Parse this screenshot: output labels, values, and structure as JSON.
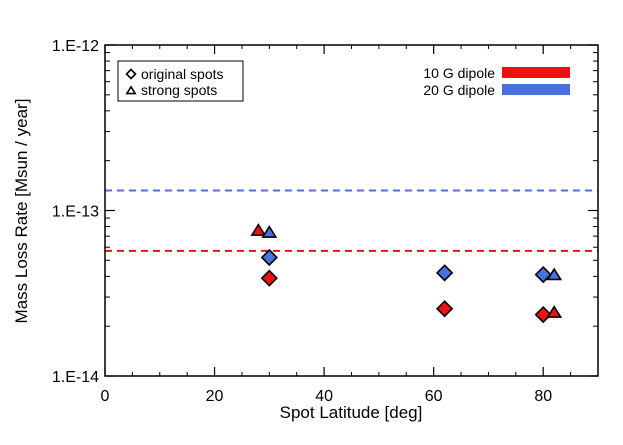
{
  "chart_data": {
    "type": "scatter",
    "title": "",
    "xlabel": "Spot Latitude [deg]",
    "ylabel": "Mass Loss Rate [Msun / year]",
    "xlim": [
      0,
      90
    ],
    "ylim": [
      1e-14,
      1e-12
    ],
    "yscale": "log",
    "xticks": [
      0,
      20,
      40,
      60,
      80
    ],
    "xtick_labels": [
      "0",
      "20",
      "40",
      "60",
      "80"
    ],
    "yticks": [
      1e-14,
      1e-13,
      1e-12
    ],
    "ytick_labels": [
      "1.E-14",
      "1.E-13",
      "1.E-12"
    ],
    "series": [
      {
        "name": "10 G dipole original spots",
        "dipole": "10 G dipole",
        "marker": "diamond",
        "color": "#ee1111",
        "x": [
          30,
          62,
          80
        ],
        "y": [
          3.9e-14,
          2.55e-14,
          2.35e-14
        ]
      },
      {
        "name": "10 G dipole strong spots",
        "dipole": "10 G dipole",
        "marker": "triangle",
        "color": "#ee1111",
        "x": [
          28,
          82
        ],
        "y": [
          7.5e-14,
          2.4e-14
        ]
      },
      {
        "name": "20 G dipole original spots",
        "dipole": "20 G dipole",
        "marker": "diamond",
        "color": "#4a70e0",
        "x": [
          30,
          62,
          80
        ],
        "y": [
          5.2e-14,
          4.2e-14,
          4.1e-14
        ]
      },
      {
        "name": "20 G dipole strong spots",
        "dipole": "20 G dipole",
        "marker": "triangle",
        "color": "#4a70e0",
        "x": [
          30,
          82
        ],
        "y": [
          7.3e-14,
          4.05e-14
        ]
      }
    ],
    "reference_lines": [
      {
        "name": "10 G dipole",
        "y": 5.7e-14,
        "color": "#ee1111",
        "style": "dashed"
      },
      {
        "name": "20 G dipole",
        "y": 1.32e-13,
        "color": "#4a70e0",
        "style": "dashed"
      }
    ],
    "legend_markers": {
      "position": "top-left",
      "entries": [
        {
          "marker": "diamond",
          "label": "original spots"
        },
        {
          "marker": "triangle",
          "label": "strong spots"
        }
      ]
    },
    "legend_colors": {
      "position": "top-right",
      "entries": [
        {
          "label": "10 G dipole",
          "color": "#ee1111"
        },
        {
          "label": "20 G dipole",
          "color": "#4a70e0"
        }
      ]
    }
  }
}
